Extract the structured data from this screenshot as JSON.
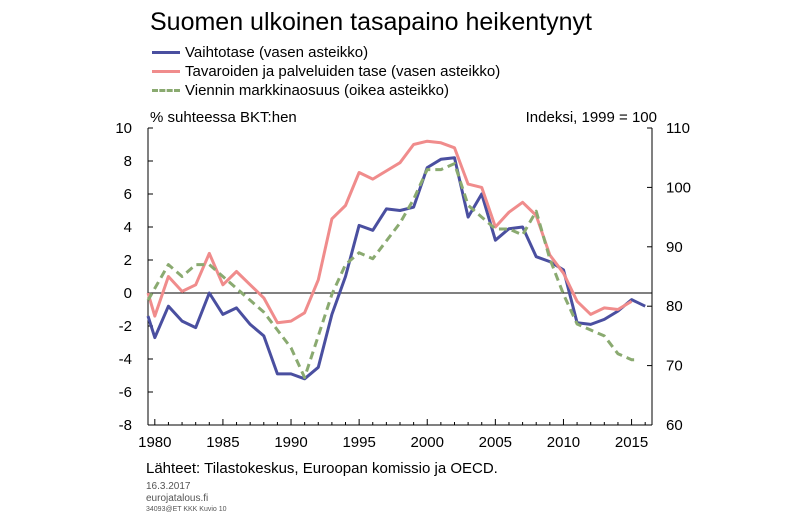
{
  "chart_data": {
    "type": "line",
    "title": "Suomen ulkoinen tasapaino heikentynyt",
    "left_axis_label": "% suhteessa BKT:hen",
    "right_axis_label": "Indeksi, 1999 = 100",
    "xlim": [
      1979.5,
      2016.5
    ],
    "ylim_left": [
      -8,
      10
    ],
    "ylim_right": [
      60,
      110
    ],
    "x_ticks": [
      1980,
      1985,
      1990,
      1995,
      2000,
      2005,
      2010,
      2015
    ],
    "y_ticks_left": [
      -8,
      -6,
      -4,
      -2,
      0,
      2,
      4,
      6,
      8,
      10
    ],
    "y_ticks_right": [
      60,
      70,
      80,
      90,
      100,
      110
    ],
    "grid": false,
    "legend_position": "top-left",
    "series": [
      {
        "name": "Vaihtotase (vasen asteikko)",
        "axis": "left",
        "color": "#4a4fa0",
        "style": "solid",
        "x": [
          1979.5,
          1980,
          1981,
          1982,
          1983,
          1984,
          1985,
          1986,
          1987,
          1988,
          1989,
          1990,
          1991,
          1992,
          1993,
          1994,
          1995,
          1996,
          1997,
          1998,
          1999,
          2000,
          2001,
          2002,
          2003,
          2004,
          2005,
          2006,
          2007,
          2008,
          2009,
          2010,
          2011,
          2012,
          2013,
          2014,
          2015,
          2016
        ],
        "y": [
          -1.4,
          -2.7,
          -0.8,
          -1.7,
          -2.1,
          0,
          -1.3,
          -0.9,
          -1.9,
          -2.6,
          -4.9,
          -4.9,
          -5.2,
          -4.5,
          -1.3,
          1.0,
          4.1,
          3.8,
          5.1,
          5.0,
          5.2,
          7.6,
          8.1,
          8.2,
          4.6,
          6.0,
          3.2,
          3.9,
          4.0,
          2.2,
          1.9,
          1.4,
          -1.8,
          -1.9,
          -1.6,
          -1.1,
          -0.4,
          -0.8
        ]
      },
      {
        "name": "Tavaroiden ja palveluiden tase (vasen asteikko)",
        "axis": "left",
        "color": "#f08c8c",
        "style": "solid",
        "x": [
          1979.5,
          1980,
          1981,
          1982,
          1983,
          1984,
          1985,
          1986,
          1987,
          1988,
          1989,
          1990,
          1991,
          1992,
          1993,
          1994,
          1995,
          1996,
          1997,
          1998,
          1999,
          2000,
          2001,
          2002,
          2003,
          2004,
          2005,
          2006,
          2007,
          2008,
          2009,
          2010,
          2011,
          2012,
          2013,
          2014,
          2015
        ],
        "y": [
          0,
          -1.4,
          1.0,
          0.1,
          0.5,
          2.4,
          0.5,
          1.3,
          0.5,
          -0.3,
          -1.8,
          -1.7,
          -1.2,
          0.8,
          4.5,
          5.3,
          7.3,
          6.9,
          7.4,
          7.9,
          9.0,
          9.2,
          9.1,
          8.8,
          6.6,
          6.4,
          4.0,
          4.9,
          5.5,
          4.7,
          2.3,
          1.2,
          -0.5,
          -1.3,
          -0.9,
          -1.0,
          -0.5
        ]
      },
      {
        "name": "Viennin markkinaosuus (oikea asteikko)",
        "axis": "right",
        "color": "#8aaa70",
        "style": "dashed",
        "x": [
          1979.5,
          1980,
          1981,
          1982,
          1983,
          1984,
          1985,
          1986,
          1987,
          1988,
          1989,
          1990,
          1991,
          1992,
          1993,
          1994,
          1995,
          1996,
          1997,
          1998,
          1999,
          2000,
          2001,
          2002,
          2003,
          2004,
          2005,
          2006,
          2007,
          2008,
          2009,
          2010,
          2011,
          2012,
          2013,
          2014,
          2015,
          2015.5
        ],
        "y": [
          81,
          83,
          87,
          85,
          87,
          87,
          85,
          83,
          81,
          79,
          76,
          73,
          68,
          75,
          82,
          87,
          89,
          88,
          91,
          94,
          98,
          103,
          103,
          104,
          97,
          95,
          93,
          93,
          92,
          96,
          88,
          82,
          77,
          76,
          75,
          72,
          71,
          71
        ]
      }
    ]
  },
  "source_text": "Lähteet: Tilastokeskus, Euroopan komissio ja OECD.",
  "date_text": "16.3.2017",
  "site_text": "eurojatalous.fi",
  "code_text": "34093@ET KKK Kuvio 10"
}
